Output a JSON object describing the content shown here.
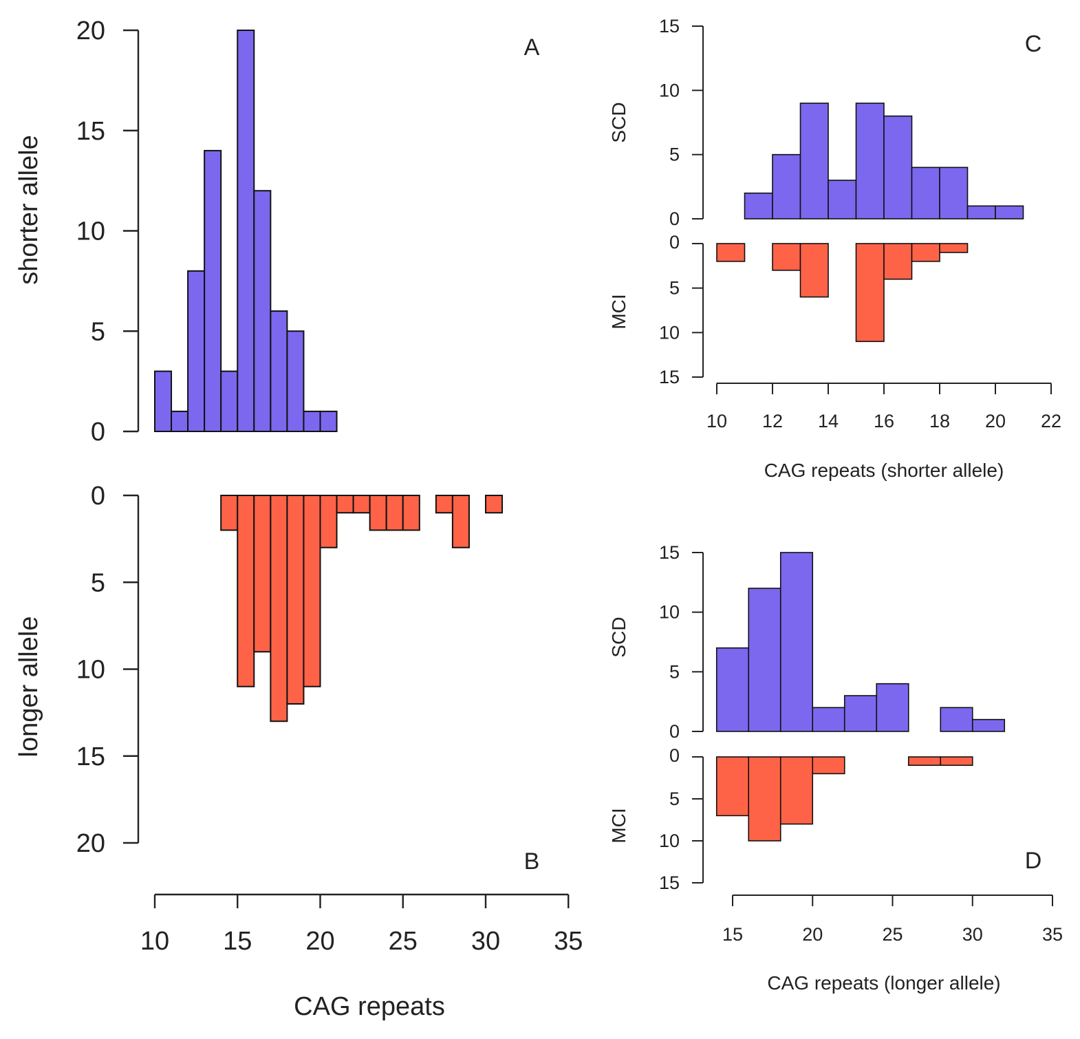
{
  "colors": {
    "scd": "#7B68EE",
    "mci": "#FF6347",
    "axis": "#222222"
  },
  "chart_data": [
    {
      "panel": "A",
      "type": "bar",
      "orientation": "up",
      "color": "scd",
      "ylabel": "shorter allele",
      "ylim": [
        0,
        20
      ],
      "yticks": [
        "0",
        "5",
        "10",
        "15",
        "20"
      ],
      "bin_start": 10,
      "bin_width": 1,
      "values": [
        3,
        1,
        8,
        14,
        3,
        20,
        12,
        6,
        5,
        1,
        1
      ]
    },
    {
      "panel": "B",
      "type": "bar",
      "orientation": "down",
      "color": "mci",
      "ylabel": "longer allele",
      "ylim": [
        0,
        20
      ],
      "yticks": [
        "0",
        "5",
        "10",
        "15",
        "20"
      ],
      "bin_start": 14,
      "bin_width": 1,
      "values": [
        2,
        11,
        9,
        13,
        12,
        11,
        3,
        1,
        1,
        2,
        2,
        2,
        0,
        1,
        3,
        0,
        1
      ],
      "xlabel": "CAG repeats",
      "xlim": [
        10,
        35
      ],
      "xticks": [
        "10",
        "15",
        "20",
        "25",
        "30",
        "35"
      ]
    },
    {
      "panel": "C",
      "type": "bar",
      "xlabel": "CAG repeats (shorter allele)",
      "xlim": [
        10,
        22
      ],
      "xticks": [
        "10",
        "12",
        "14",
        "16",
        "18",
        "20",
        "22"
      ],
      "top": {
        "ylabel": "SCD",
        "color": "scd",
        "ylim": [
          0,
          15
        ],
        "yticks": [
          "0",
          "5",
          "10",
          "15"
        ],
        "bin_start": 11,
        "bin_width": 1,
        "values": [
          2,
          5,
          9,
          3,
          9,
          8,
          4,
          4,
          1,
          1
        ]
      },
      "bottom": {
        "ylabel": "MCI",
        "color": "mci",
        "ylim": [
          0,
          15
        ],
        "yticks": [
          "0",
          "5",
          "10",
          "15"
        ],
        "bin_start": 10,
        "bin_width": 1,
        "values": [
          2,
          0,
          3,
          6,
          0,
          11,
          4,
          2,
          1
        ]
      }
    },
    {
      "panel": "D",
      "type": "bar",
      "xlabel": "CAG repeats (longer allele)",
      "xlim": [
        15,
        35
      ],
      "xticks": [
        "15",
        "20",
        "25",
        "30",
        "35"
      ],
      "top": {
        "ylabel": "SCD",
        "color": "scd",
        "ylim": [
          0,
          15
        ],
        "yticks": [
          "0",
          "5",
          "10",
          "15"
        ],
        "bin_start": 14,
        "bin_width": 2,
        "values": [
          7,
          12,
          15,
          2,
          3,
          4,
          0,
          2,
          1
        ]
      },
      "bottom": {
        "ylabel": "MCI",
        "color": "mci",
        "ylim": [
          0,
          15
        ],
        "yticks": [
          "0",
          "5",
          "10",
          "15"
        ],
        "bin_start": 14,
        "bin_width": 2,
        "values": [
          7,
          10,
          8,
          2,
          0,
          0,
          1,
          1
        ]
      }
    }
  ]
}
